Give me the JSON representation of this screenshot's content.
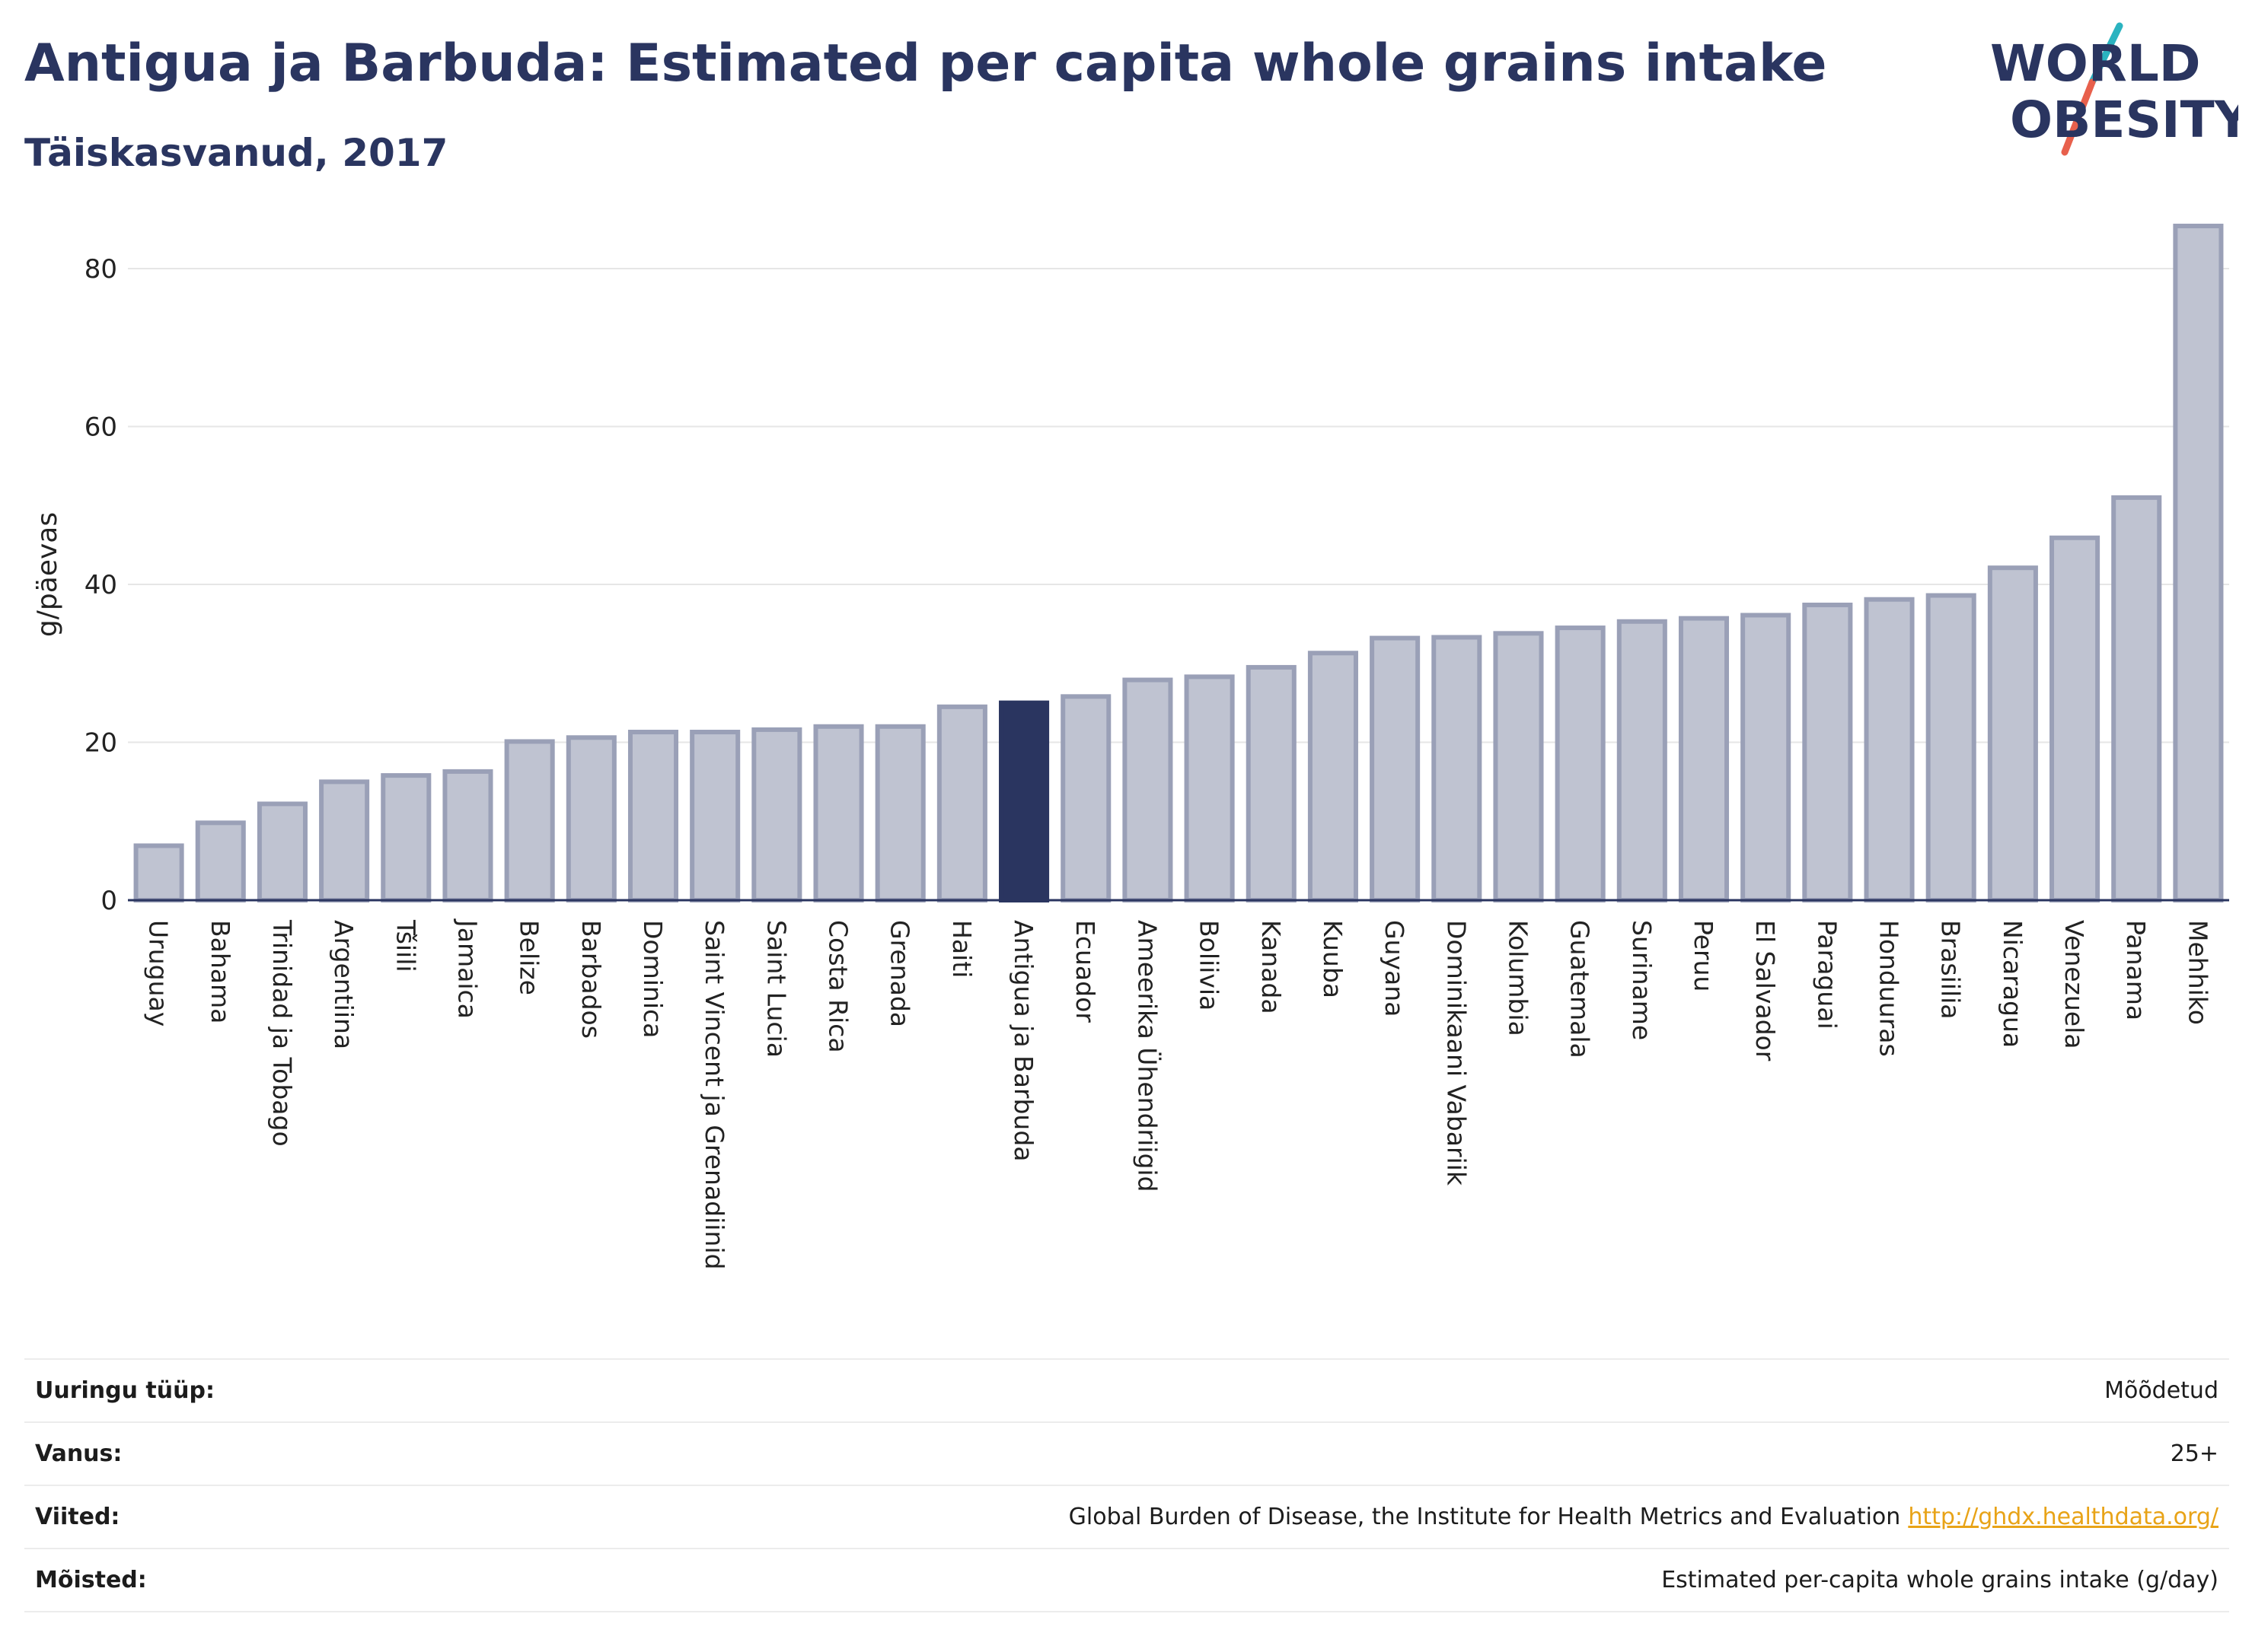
{
  "header": {
    "title": "Antigua ja Barbuda: Estimated per capita whole grains intake",
    "subtitle": "Täiskasvanud, 2017"
  },
  "logo": {
    "line1": "WORLD",
    "line2": "OBESITY",
    "colors": {
      "text": "#2a3560",
      "teal_slash": "#2bb3c0",
      "red_slash": "#e8604c"
    }
  },
  "chart_data": {
    "type": "bar",
    "title": "Antigua ja Barbuda: Estimated per capita whole grains intake",
    "subtitle": "Täiskasvanud, 2017",
    "xlabel": "",
    "ylabel": "g/päevas",
    "ylim": [
      0,
      88
    ],
    "yticks": [
      0,
      20,
      40,
      60,
      80
    ],
    "grid": true,
    "highlight": "Antigua ja Barbuda",
    "colors": {
      "bar": "#bfc3d1",
      "bar_border": "#9aa0b7",
      "highlight": "#2a3560",
      "grid": "#e6e6e6",
      "axis": "#2a3560"
    },
    "categories": [
      "Uruguay",
      "Bahama",
      "Trinidad ja Tobago",
      "Argentiina",
      "Tšiili",
      "Jamaica",
      "Belize",
      "Barbados",
      "Dominica",
      "Saint Vincent ja Grenadiinid",
      "Saint Lucia",
      "Costa Rica",
      "Grenada",
      "Haiti",
      "Antigua ja Barbuda",
      "Ecuador",
      "Ameerika Ühendriigid",
      "Boliivia",
      "Kanada",
      "Kuuba",
      "Guyana",
      "Dominikaani Vabariik",
      "Kolumbia",
      "Guatemala",
      "Suriname",
      "Peruu",
      "El Salvador",
      "Paraguai",
      "Honduuras",
      "Brasiilia",
      "Nicaragua",
      "Venezuela",
      "Panama",
      "Mehhiko"
    ],
    "values": [
      6.9,
      9.8,
      12.2,
      15.0,
      15.8,
      16.3,
      20.1,
      20.6,
      21.3,
      21.3,
      21.6,
      22.0,
      22.0,
      24.5,
      25.0,
      25.8,
      27.9,
      28.3,
      29.5,
      31.3,
      33.2,
      33.3,
      33.8,
      34.5,
      35.3,
      35.7,
      36.1,
      37.4,
      38.1,
      38.6,
      42.1,
      45.9,
      51.0,
      85.4
    ]
  },
  "info": {
    "rows": [
      {
        "label": "Uuringu tüüp:",
        "value": "Mõõdetud"
      },
      {
        "label": "Vanus:",
        "value": "25+"
      },
      {
        "label": "Viited:",
        "value": "Global Burden of Disease, the Institute for Health Metrics and Evaluation",
        "link": "http://ghdx.healthdata.org/"
      },
      {
        "label": "Mõisted:",
        "value": "Estimated per-capita whole grains intake (g/day)"
      }
    ]
  }
}
